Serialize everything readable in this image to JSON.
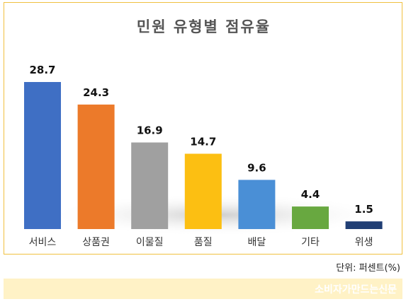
{
  "chart_data": {
    "type": "bar",
    "title": "민원 유형별 점유율",
    "categories": [
      "서비스",
      "상품권",
      "이물질",
      "품질",
      "배달",
      "기타",
      "위생"
    ],
    "values": [
      28.7,
      24.3,
      16.9,
      14.7,
      9.6,
      4.4,
      1.5
    ],
    "value_labels": [
      "28.7",
      "24.3",
      "16.9",
      "14.7",
      "9.6",
      "4.4",
      "1.5"
    ],
    "colors": [
      "#3f6fc4",
      "#ec7a2a",
      "#a0a0a0",
      "#fcbf12",
      "#4a8fd6",
      "#68a840",
      "#203e74"
    ],
    "ylim": [
      0,
      28.7
    ],
    "grid": false,
    "legend": "none"
  },
  "unit_label": "단위: 퍼센트(%)",
  "footer": {
    "watermark": "소비자가만드는신문"
  }
}
